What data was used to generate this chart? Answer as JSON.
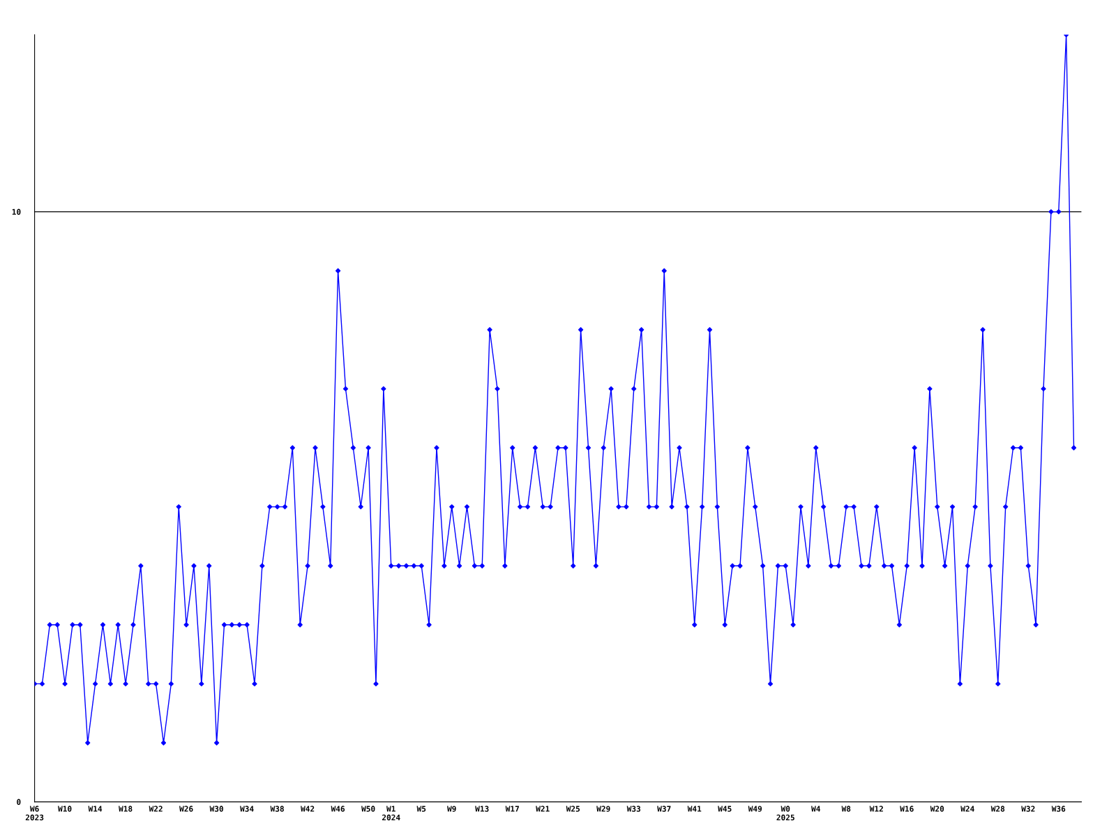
{
  "chart_data": {
    "type": "line",
    "categories": [
      "W6\n2023",
      null,
      null,
      null,
      "W10",
      null,
      null,
      null,
      "W14",
      null,
      null,
      null,
      "W18",
      null,
      null,
      null,
      "W22",
      null,
      null,
      null,
      "W26",
      null,
      null,
      null,
      "W30",
      null,
      null,
      null,
      "W34",
      null,
      null,
      null,
      "W38",
      null,
      null,
      null,
      "W42",
      null,
      null,
      null,
      "W46",
      null,
      null,
      null,
      "W50",
      null,
      null,
      "W1\n2024",
      null,
      null,
      null,
      "W5",
      null,
      null,
      null,
      "W9",
      null,
      null,
      null,
      "W13",
      null,
      null,
      null,
      "W17",
      null,
      null,
      null,
      "W21",
      null,
      null,
      null,
      "W25",
      null,
      null,
      null,
      "W29",
      null,
      null,
      null,
      "W33",
      null,
      null,
      null,
      "W37",
      null,
      null,
      null,
      "W41",
      null,
      null,
      null,
      "W45",
      null,
      null,
      null,
      "W49",
      null,
      null,
      null,
      "W0\n2025",
      null,
      null,
      null,
      "W4",
      null,
      null,
      null,
      "W8",
      null,
      null,
      null,
      "W12",
      null,
      null,
      null,
      "W16",
      null,
      null,
      null,
      "W20",
      null,
      null,
      null,
      "W24",
      null,
      null,
      null,
      "W28",
      null,
      null,
      null,
      "W32",
      null,
      null,
      null,
      "W36",
      null,
      null
    ],
    "series": [
      {
        "color": "#0000ff",
        "values": [
          2,
          2,
          3,
          3,
          2,
          3,
          3,
          1,
          2,
          3,
          2,
          3,
          2,
          3,
          4,
          2,
          2,
          1,
          2,
          5,
          3,
          4,
          2,
          4,
          1,
          3,
          3,
          3,
          3,
          2,
          4,
          5,
          5,
          5,
          6,
          3,
          4,
          6,
          5,
          4,
          9,
          7,
          6,
          5,
          6,
          2,
          7,
          4,
          4,
          4,
          4,
          4,
          3,
          6,
          4,
          5,
          4,
          5,
          4,
          4,
          8,
          7,
          4,
          6,
          5,
          5,
          6,
          5,
          5,
          6,
          6,
          4,
          8,
          6,
          4,
          6,
          7,
          5,
          5,
          7,
          8,
          5,
          5,
          9,
          5,
          6,
          5,
          3,
          5,
          8,
          5,
          3,
          4,
          4,
          6,
          5,
          4,
          2,
          4,
          4,
          3,
          5,
          4,
          6,
          5,
          4,
          4,
          5,
          5,
          4,
          4,
          5,
          4,
          4,
          3,
          4,
          6,
          4,
          7,
          5,
          4,
          5,
          2,
          4,
          5,
          8,
          4,
          2,
          5,
          6,
          6,
          4,
          3,
          7,
          10,
          10,
          13,
          6
        ]
      }
    ],
    "ylim": [
      0,
      13
    ],
    "yticks": [
      0,
      10
    ],
    "grid": "y",
    "marker": "diamond",
    "line_style": "solid",
    "legend": false
  }
}
